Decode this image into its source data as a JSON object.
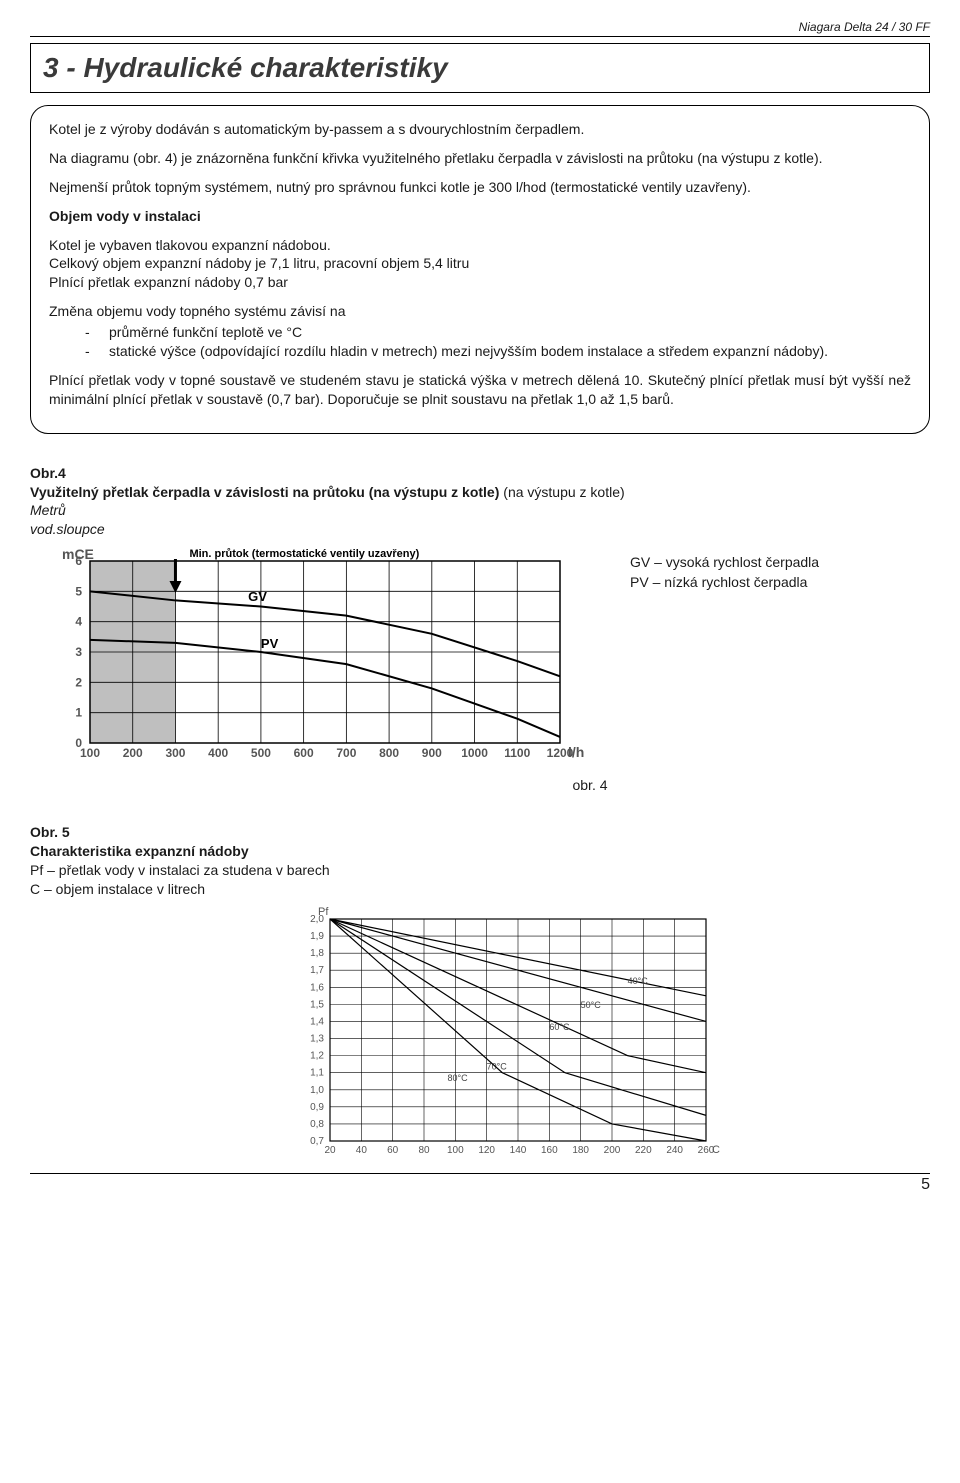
{
  "header": {
    "doc_title": "Niagara Delta 24 / 30 FF"
  },
  "title": "3 - Hydraulické charakteristiky",
  "intro": {
    "p1": "Kotel je z výroby dodáván s automatickým by-passem a s dvourychlostním čerpadlem.",
    "p2": "Na diagramu (obr. 4) je znázorněna funkční křivka využitelného přetlaku čerpadla v závislosti na průtoku (na výstupu z kotle).",
    "p3": "Nejmenší průtok topným systémem, nutný pro správnou funkci kotle je 300 l/hod (termostatické ventily uzavřeny).",
    "h_objem": "Objem vody v instalaci",
    "p4": "Kotel je vybaven tlakovou expanzní nádobou.",
    "p5": "Celkový objem expanzní nádoby je 7,1 litru, pracovní objem 5,4 litru",
    "p6": "Plnící přetlak expanzní nádoby 0,7 bar",
    "p7": "Změna objemu vody topného systému závisí na",
    "li1": "průměrné funkční teplotě ve °C",
    "li2": "statické výšce (odpovídající rozdílu hladin v metrech) mezi nejvyšším bodem instalace a středem expanzní nádoby).",
    "p8": "Plnící přetlak vody v topné soustavě ve studeném stavu je statická výška v metrech dělená 10. Skutečný plnící přetlak musí být vyšší než minimální plnící přetlak v soustavě (0,7 bar). Doporučuje se plnit soustavu na přetlak 1,0 až 1,5 barů."
  },
  "fig4": {
    "label": "Obr.4",
    "caption": "Využitelný přetlak čerpadla v závislosti na průtoku (na výstupu z kotle)",
    "yunit1": "Metrů",
    "yunit2": "vod.sloupce",
    "note": "Min. průtok (termostatické ventily uzavřeny)",
    "legend_gv": "GV – vysoká rychlost čerpadla",
    "legend_pv": "PV – nízká rychlost čerpadla",
    "fig_label_below": "obr. 4",
    "chart": {
      "type": "line",
      "y_axis_label": "mCE",
      "x_axis_label": "l/h",
      "xlim": [
        100,
        1200
      ],
      "ylim": [
        0,
        6
      ],
      "xticks": [
        100,
        200,
        300,
        400,
        500,
        600,
        700,
        800,
        900,
        1000,
        1100,
        1200
      ],
      "yticks": [
        0,
        1,
        2,
        3,
        4,
        5,
        6
      ],
      "shaded_xmax": 300,
      "grid_color": "#000000",
      "bg_color": "#ffffff",
      "shade_color": "#bfbfbf",
      "font_size": 14,
      "tick_font_size": 12,
      "line_width": 2,
      "series": {
        "GV": {
          "label": "GV",
          "points": [
            [
              100,
              5.0
            ],
            [
              300,
              4.7
            ],
            [
              500,
              4.5
            ],
            [
              700,
              4.2
            ],
            [
              900,
              3.6
            ],
            [
              1100,
              2.7
            ],
            [
              1200,
              2.2
            ]
          ]
        },
        "PV": {
          "label": "PV",
          "points": [
            [
              100,
              3.4
            ],
            [
              300,
              3.3
            ],
            [
              500,
              3.0
            ],
            [
              700,
              2.6
            ],
            [
              900,
              1.8
            ],
            [
              1100,
              0.8
            ],
            [
              1200,
              0.2
            ]
          ]
        }
      }
    }
  },
  "fig5": {
    "label": "Obr. 5",
    "caption": "Charakteristika expanzní nádoby",
    "line1": "Pf – přetlak vody v instalaci za studena v barech",
    "line2": "C – objem instalace v litrech",
    "chart": {
      "type": "line",
      "y_axis_label": "Pf",
      "x_axis_label": "C",
      "xlim": [
        20,
        260
      ],
      "ylim": [
        0.7,
        2.0
      ],
      "xticks": [
        20,
        40,
        60,
        80,
        100,
        120,
        140,
        160,
        180,
        200,
        220,
        240,
        260
      ],
      "yticks": [
        0.7,
        0.8,
        0.9,
        1.0,
        1.1,
        1.2,
        1.3,
        1.4,
        1.5,
        1.6,
        1.7,
        1.8,
        1.9,
        2.0
      ],
      "grid_color": "#000000",
      "bg_color": "#ffffff",
      "font_size": 11,
      "tick_font_size": 10,
      "line_width": 1.2,
      "series": {
        "40C": {
          "label": "40°C",
          "points": [
            [
              20,
              2.0
            ],
            [
              260,
              1.55
            ]
          ]
        },
        "50C": {
          "label": "50°C",
          "points": [
            [
              20,
              2.0
            ],
            [
              260,
              1.4
            ]
          ]
        },
        "60C": {
          "label": "60°C",
          "points": [
            [
              20,
              2.0
            ],
            [
              210,
              1.2
            ],
            [
              260,
              1.1
            ]
          ]
        },
        "70C": {
          "label": "70°C",
          "points": [
            [
              20,
              2.0
            ],
            [
              170,
              1.1
            ],
            [
              260,
              0.85
            ]
          ]
        },
        "80C": {
          "label": "80°C",
          "points": [
            [
              20,
              2.0
            ],
            [
              130,
              1.1
            ],
            [
              200,
              0.8
            ],
            [
              260,
              0.7
            ]
          ]
        }
      },
      "label_positions": {
        "40C": [
          210,
          1.62
        ],
        "50C": [
          180,
          1.48
        ],
        "60C": [
          160,
          1.35
        ],
        "70C": [
          120,
          1.12
        ],
        "80C": [
          95,
          1.05
        ]
      }
    }
  },
  "footer": {
    "page": "5"
  }
}
